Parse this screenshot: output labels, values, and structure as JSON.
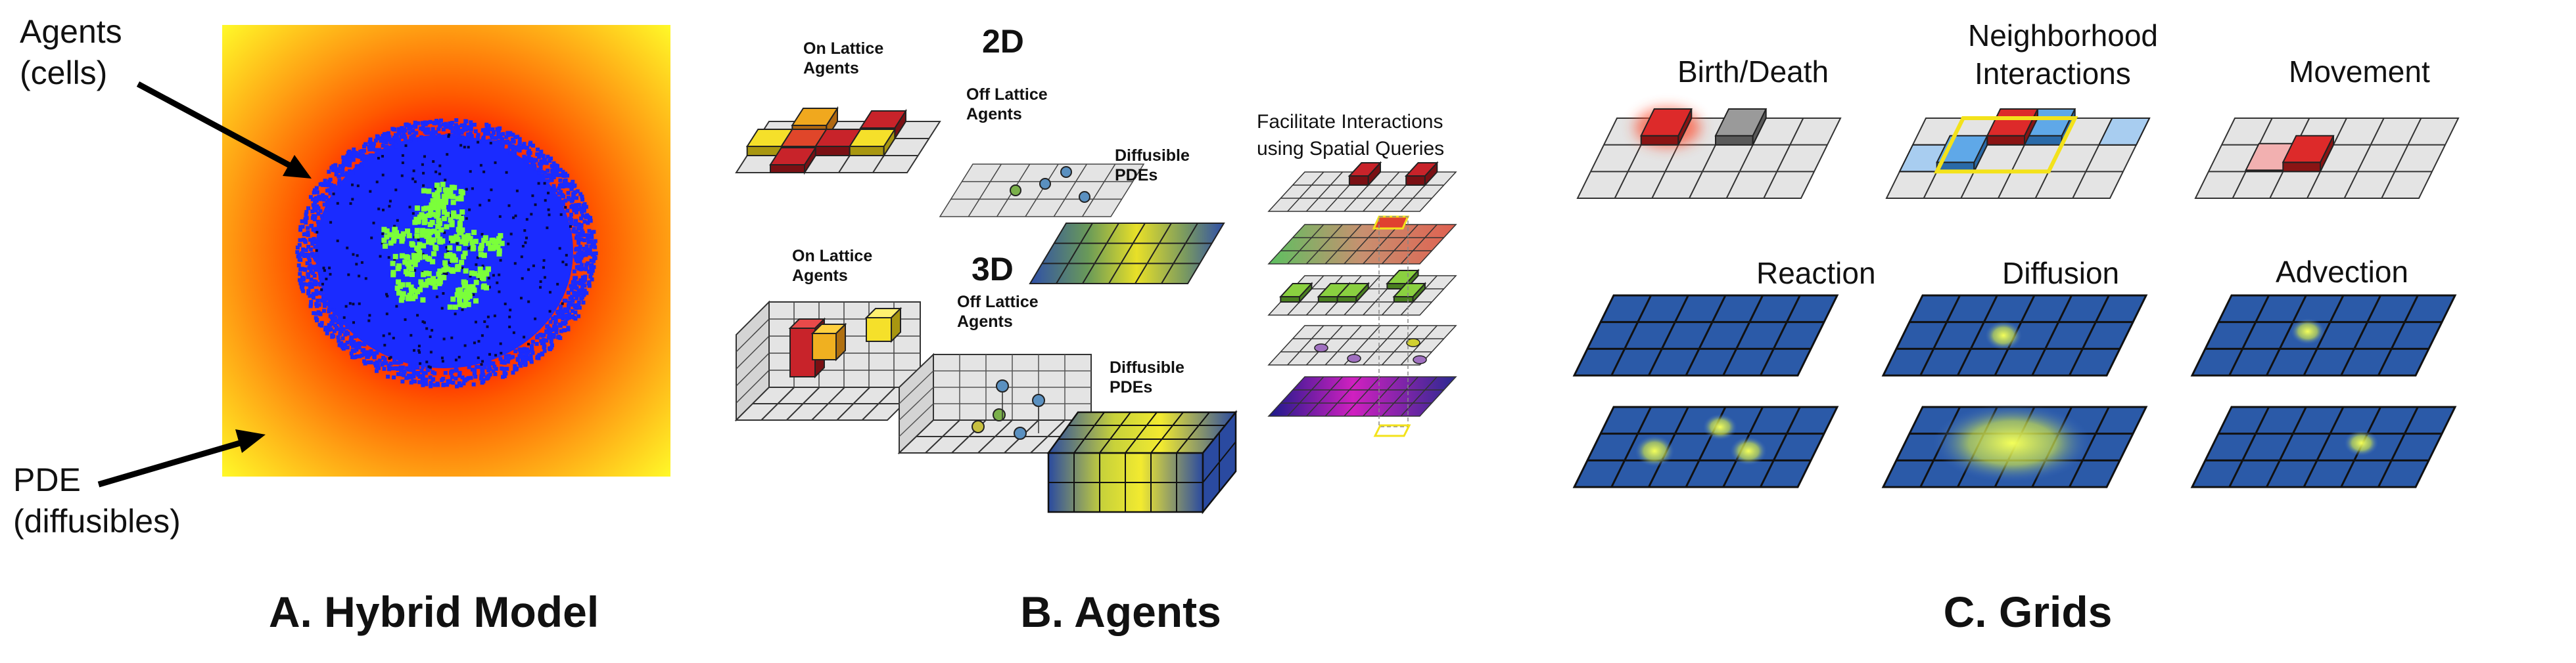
{
  "panel_a": {
    "agents_label_line1": "Agents",
    "agents_label_line2": "(cells)",
    "pde_label_line1": "PDE",
    "pde_label_line2": "(diffusibles)",
    "caption": "A. Hybrid Model"
  },
  "panel_b": {
    "heading_2d": "2D",
    "heading_3d": "3D",
    "on_lattice_2d_line1": "On Lattice",
    "on_lattice_2d_line2": "Agents",
    "off_lattice_2d_line1": "Off Lattice",
    "off_lattice_2d_line2": "Agents",
    "diffusible_2d_line1": "Diffusible",
    "diffusible_2d_line2": "PDEs",
    "on_lattice_3d_line1": "On Lattice",
    "on_lattice_3d_line2": "Agents",
    "off_lattice_3d_line1": "Off Lattice",
    "off_lattice_3d_line2": "Agents",
    "diffusible_3d_line1": "Diffusible",
    "diffusible_3d_line2": "PDEs",
    "spatial_line1": "Facilitate Interactions",
    "spatial_line2": "using Spatial Queries",
    "caption": "B. Agents"
  },
  "panel_c": {
    "birth_death": "Birth/Death",
    "neighborhood_line1": "Neighborhood",
    "neighborhood_line2": "Interactions",
    "movement": "Movement",
    "reaction": "Reaction",
    "diffusion": "Diffusion",
    "advection": "Advection",
    "caption": "C. Grids"
  },
  "colors": {
    "agent_red": "#c8232a",
    "agent_yellow": "#f5e02a",
    "agent_blue": "#5fa8e8",
    "cell_blue": "#1a2bff",
    "cell_green": "#7bff3a",
    "pde_grid_blue": "#2b5aa8",
    "grid_gray": "#e4e4e4",
    "neighborhood_yellow": "#f3e21b"
  }
}
